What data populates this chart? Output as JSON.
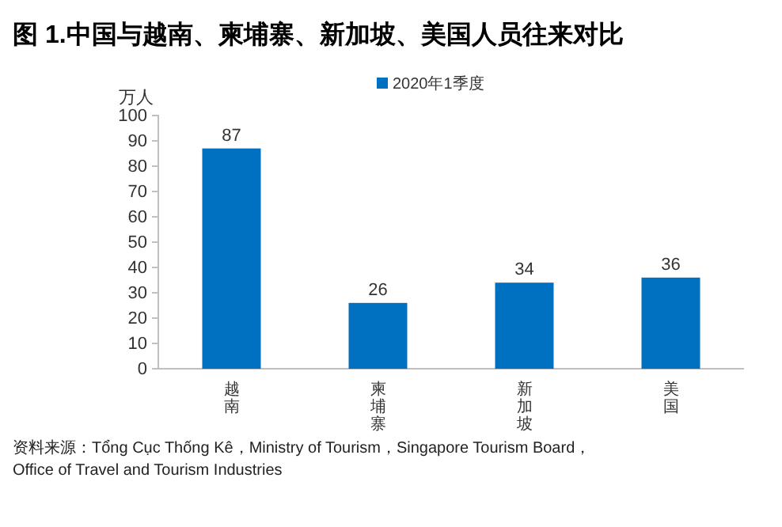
{
  "chart_data": {
    "type": "bar",
    "title": "图 1.中国与越南、柬埔寨、新加坡、美国人员往来对比",
    "ylabel": "万人",
    "categories": [
      "越南",
      "柬埔寨",
      "新加坡",
      "美国"
    ],
    "series": [
      {
        "name": "2020年1季度",
        "color": "#0070c0",
        "values": [
          87,
          26,
          34,
          36
        ]
      }
    ],
    "ylim": [
      0,
      100
    ],
    "yticks": [
      0,
      10,
      20,
      30,
      40,
      50,
      60,
      70,
      80,
      90,
      100
    ],
    "grid": false,
    "legend": "top",
    "data_labels": true,
    "annotations": [
      "资料来源：Tổng Cục Thống Kê，Ministry of Tourism，Singapore Tourism Board，Office of Travel and Tourism Industries"
    ]
  }
}
